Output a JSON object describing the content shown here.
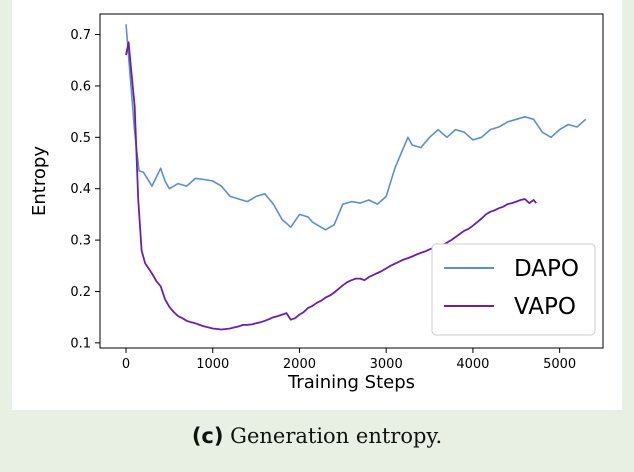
{
  "caption": {
    "label": "(c)",
    "text": "Generation entropy."
  },
  "chart_data": {
    "type": "line",
    "xlabel": "Training Steps",
    "ylabel": "Entropy",
    "xlim": [
      -300,
      5500
    ],
    "ylim": [
      0.09,
      0.74
    ],
    "xticks": [
      0,
      1000,
      2000,
      3000,
      4000,
      5000
    ],
    "yticks": [
      0.1,
      0.2,
      0.3,
      0.4,
      0.5,
      0.6,
      0.7
    ],
    "xtick_labels": [
      "0",
      "1000",
      "2000",
      "3000",
      "4000",
      "5000"
    ],
    "ytick_labels": [
      "0.1",
      "0.2",
      "0.3",
      "0.4",
      "0.5",
      "0.6",
      "0.7"
    ],
    "grid": false,
    "legend_position": "lower-right",
    "series": [
      {
        "name": "DAPO",
        "color": "#5a8fd4",
        "x": [
          0,
          100,
          150,
          200,
          300,
          400,
          450,
          500,
          600,
          700,
          800,
          900,
          1000,
          1100,
          1200,
          1300,
          1400,
          1500,
          1600,
          1700,
          1800,
          1900,
          2000,
          2100,
          2150,
          2200,
          2300,
          2400,
          2500,
          2600,
          2700,
          2800,
          2900,
          3000,
          3100,
          3150,
          3250,
          3300,
          3400,
          3500,
          3600,
          3700,
          3800,
          3900,
          4000,
          4100,
          4200,
          4300,
          4400,
          4500,
          4600,
          4700,
          4800,
          4900,
          5000,
          5100,
          5200,
          5300
        ],
        "y": [
          0.72,
          0.51,
          0.435,
          0.432,
          0.405,
          0.44,
          0.415,
          0.4,
          0.41,
          0.405,
          0.42,
          0.418,
          0.415,
          0.405,
          0.385,
          0.38,
          0.375,
          0.385,
          0.39,
          0.37,
          0.34,
          0.325,
          0.35,
          0.345,
          0.335,
          0.33,
          0.32,
          0.33,
          0.37,
          0.375,
          0.372,
          0.378,
          0.37,
          0.385,
          0.44,
          0.46,
          0.5,
          0.485,
          0.48,
          0.5,
          0.515,
          0.5,
          0.515,
          0.51,
          0.495,
          0.5,
          0.515,
          0.52,
          0.53,
          0.535,
          0.54,
          0.535,
          0.51,
          0.5,
          0.515,
          0.525,
          0.52,
          0.535
        ]
      },
      {
        "name": "VAPO",
        "color": "#6a1fb0",
        "x": [
          0,
          30,
          60,
          100,
          140,
          180,
          220,
          260,
          300,
          350,
          400,
          450,
          500,
          550,
          600,
          650,
          700,
          750,
          800,
          850,
          900,
          950,
          1000,
          1050,
          1100,
          1150,
          1200,
          1250,
          1300,
          1350,
          1400,
          1450,
          1500,
          1550,
          1600,
          1650,
          1700,
          1750,
          1800,
          1850,
          1900,
          1950,
          2000,
          2050,
          2100,
          2150,
          2200,
          2250,
          2300,
          2350,
          2400,
          2450,
          2500,
          2550,
          2600,
          2650,
          2700,
          2750,
          2800,
          2850,
          2900,
          2950,
          3000,
          3050,
          3100,
          3150,
          3200,
          3250,
          3300,
          3350,
          3400,
          3450,
          3500,
          3550,
          3600,
          3650,
          3700,
          3750,
          3800,
          3850,
          3900,
          3950,
          4000,
          4050,
          4100,
          4150,
          4200,
          4250,
          4300,
          4350,
          4400,
          4450,
          4500,
          4550,
          4600,
          4650,
          4700,
          4730
        ],
        "y": [
          0.66,
          0.685,
          0.63,
          0.56,
          0.38,
          0.28,
          0.255,
          0.245,
          0.235,
          0.22,
          0.21,
          0.185,
          0.17,
          0.16,
          0.152,
          0.148,
          0.143,
          0.14,
          0.138,
          0.135,
          0.132,
          0.13,
          0.128,
          0.127,
          0.126,
          0.127,
          0.128,
          0.13,
          0.132,
          0.135,
          0.135,
          0.136,
          0.138,
          0.14,
          0.143,
          0.146,
          0.15,
          0.152,
          0.155,
          0.158,
          0.145,
          0.148,
          0.155,
          0.16,
          0.168,
          0.172,
          0.178,
          0.182,
          0.188,
          0.192,
          0.198,
          0.205,
          0.212,
          0.218,
          0.222,
          0.225,
          0.225,
          0.222,
          0.228,
          0.232,
          0.236,
          0.24,
          0.245,
          0.25,
          0.254,
          0.258,
          0.262,
          0.265,
          0.268,
          0.272,
          0.275,
          0.278,
          0.282,
          0.285,
          0.288,
          0.29,
          0.295,
          0.3,
          0.306,
          0.312,
          0.318,
          0.322,
          0.328,
          0.335,
          0.342,
          0.35,
          0.355,
          0.358,
          0.362,
          0.365,
          0.37,
          0.372,
          0.375,
          0.378,
          0.38,
          0.372,
          0.378,
          0.372
        ]
      }
    ]
  }
}
